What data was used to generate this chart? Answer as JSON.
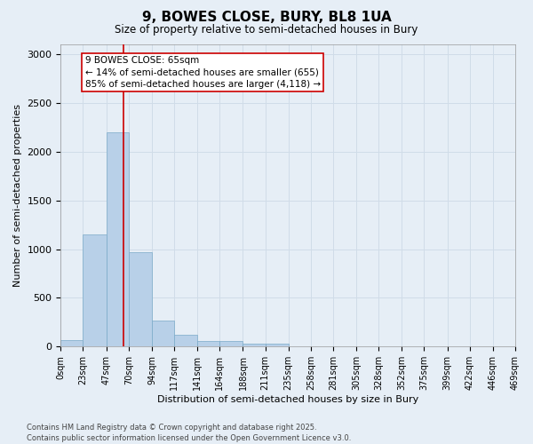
{
  "title": "9, BOWES CLOSE, BURY, BL8 1UA",
  "subtitle": "Size of property relative to semi-detached houses in Bury",
  "xlabel": "Distribution of semi-detached houses by size in Bury",
  "ylabel": "Number of semi-detached properties",
  "bin_labels": [
    "0sqm",
    "23sqm",
    "47sqm",
    "70sqm",
    "94sqm",
    "117sqm",
    "141sqm",
    "164sqm",
    "188sqm",
    "211sqm",
    "235sqm",
    "258sqm",
    "281sqm",
    "305sqm",
    "328sqm",
    "352sqm",
    "375sqm",
    "399sqm",
    "422sqm",
    "446sqm",
    "469sqm"
  ],
  "bin_edges": [
    0,
    23,
    47,
    70,
    94,
    117,
    141,
    164,
    188,
    211,
    235,
    258,
    281,
    305,
    328,
    352,
    375,
    399,
    422,
    446,
    469
  ],
  "bar_values": [
    70,
    1150,
    2200,
    970,
    270,
    120,
    55,
    55,
    30,
    30,
    0,
    0,
    0,
    0,
    0,
    0,
    0,
    0,
    0,
    0
  ],
  "bar_color": "#b8d0e8",
  "bar_edge_color": "#7aaac8",
  "grid_color": "#d0dce8",
  "bg_color": "#e6eef6",
  "property_value": 65,
  "vline_color": "#cc0000",
  "annotation_text": "9 BOWES CLOSE: 65sqm\n← 14% of semi-detached houses are smaller (655)\n85% of semi-detached houses are larger (4,118) →",
  "annotation_box_color": "#ffffff",
  "annotation_box_edge": "#cc0000",
  "footer_line1": "Contains HM Land Registry data © Crown copyright and database right 2025.",
  "footer_line2": "Contains public sector information licensed under the Open Government Licence v3.0.",
  "ylim": [
    0,
    3100
  ],
  "yticks": [
    0,
    500,
    1000,
    1500,
    2000,
    2500,
    3000
  ],
  "title_fontsize": 11,
  "subtitle_fontsize": 8.5,
  "tick_fontsize": 7,
  "label_fontsize": 8,
  "annotation_fontsize": 7.5,
  "footer_fontsize": 6
}
